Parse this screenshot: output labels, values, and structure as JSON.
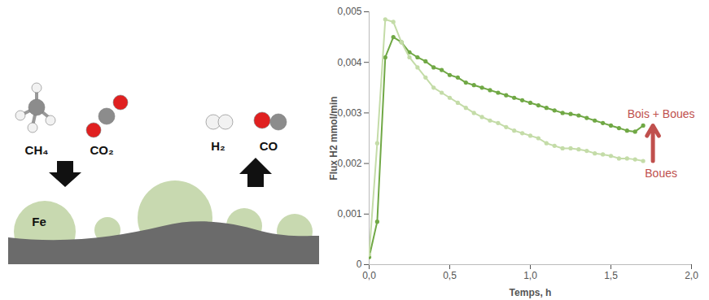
{
  "diagram": {
    "reactants": [
      "CH₄",
      "CO₂"
    ],
    "products": [
      "H₂",
      "CO"
    ],
    "particle": "Fe"
  },
  "chart_data": {
    "type": "line",
    "x_label": "Temps, h",
    "y_label": "Flux H2 mmol/min",
    "xlim": [
      0,
      2
    ],
    "xticks": [
      {
        "value": 0,
        "label": "0,0"
      },
      {
        "value": 0.5,
        "label": "0,5"
      },
      {
        "value": 1,
        "label": "1,0"
      },
      {
        "value": 1.5,
        "label": "1,5"
      },
      {
        "value": 2,
        "label": "2,0"
      }
    ],
    "ylim": [
      0,
      0.005
    ],
    "yticks": [
      0,
      {
        "value": 0.001,
        "label": "0,001"
      },
      {
        "value": 0.002,
        "label": "0,002"
      },
      {
        "value": 0.003,
        "label": "0,003"
      },
      {
        "value": 0.004,
        "label": "0,004"
      },
      {
        "value": 0.005,
        "label": "0,005"
      }
    ],
    "grid": false,
    "marker": "circle",
    "x": [
      0,
      0.05,
      0.1,
      0.15,
      0.2,
      0.25,
      0.3,
      0.35,
      0.4,
      0.45,
      0.5,
      0.55,
      0.6,
      0.65,
      0.7,
      0.75,
      0.8,
      0.85,
      0.9,
      0.95,
      1.0,
      1.05,
      1.1,
      1.15,
      1.2,
      1.25,
      1.3,
      1.35,
      1.4,
      1.45,
      1.5,
      1.55,
      1.6,
      1.65,
      1.7
    ],
    "series": [
      {
        "name": "Bois + Boues",
        "color": "#70a845",
        "values": [
          0.00015,
          0.00085,
          0.0041,
          0.0045,
          0.0044,
          0.0042,
          0.0041,
          0.00402,
          0.0039,
          0.00385,
          0.00375,
          0.0037,
          0.0036,
          0.00355,
          0.0035,
          0.00345,
          0.0034,
          0.00335,
          0.0033,
          0.00325,
          0.0032,
          0.00315,
          0.0031,
          0.00305,
          0.003,
          0.00298,
          0.00295,
          0.0029,
          0.00285,
          0.0028,
          0.00275,
          0.0027,
          0.00265,
          0.00263,
          0.00275
        ]
      },
      {
        "name": "Boues",
        "color": "#c4dca8",
        "values": [
          0.0002,
          0.0024,
          0.00485,
          0.0048,
          0.0044,
          0.0041,
          0.0039,
          0.0037,
          0.0035,
          0.0034,
          0.0033,
          0.0032,
          0.0031,
          0.003,
          0.00292,
          0.00285,
          0.0028,
          0.00272,
          0.00265,
          0.0026,
          0.00255,
          0.0025,
          0.0024,
          0.00235,
          0.0023,
          0.0023,
          0.00228,
          0.00225,
          0.0022,
          0.00218,
          0.00215,
          0.0021,
          0.0021,
          0.00208,
          0.00205
        ]
      }
    ]
  }
}
